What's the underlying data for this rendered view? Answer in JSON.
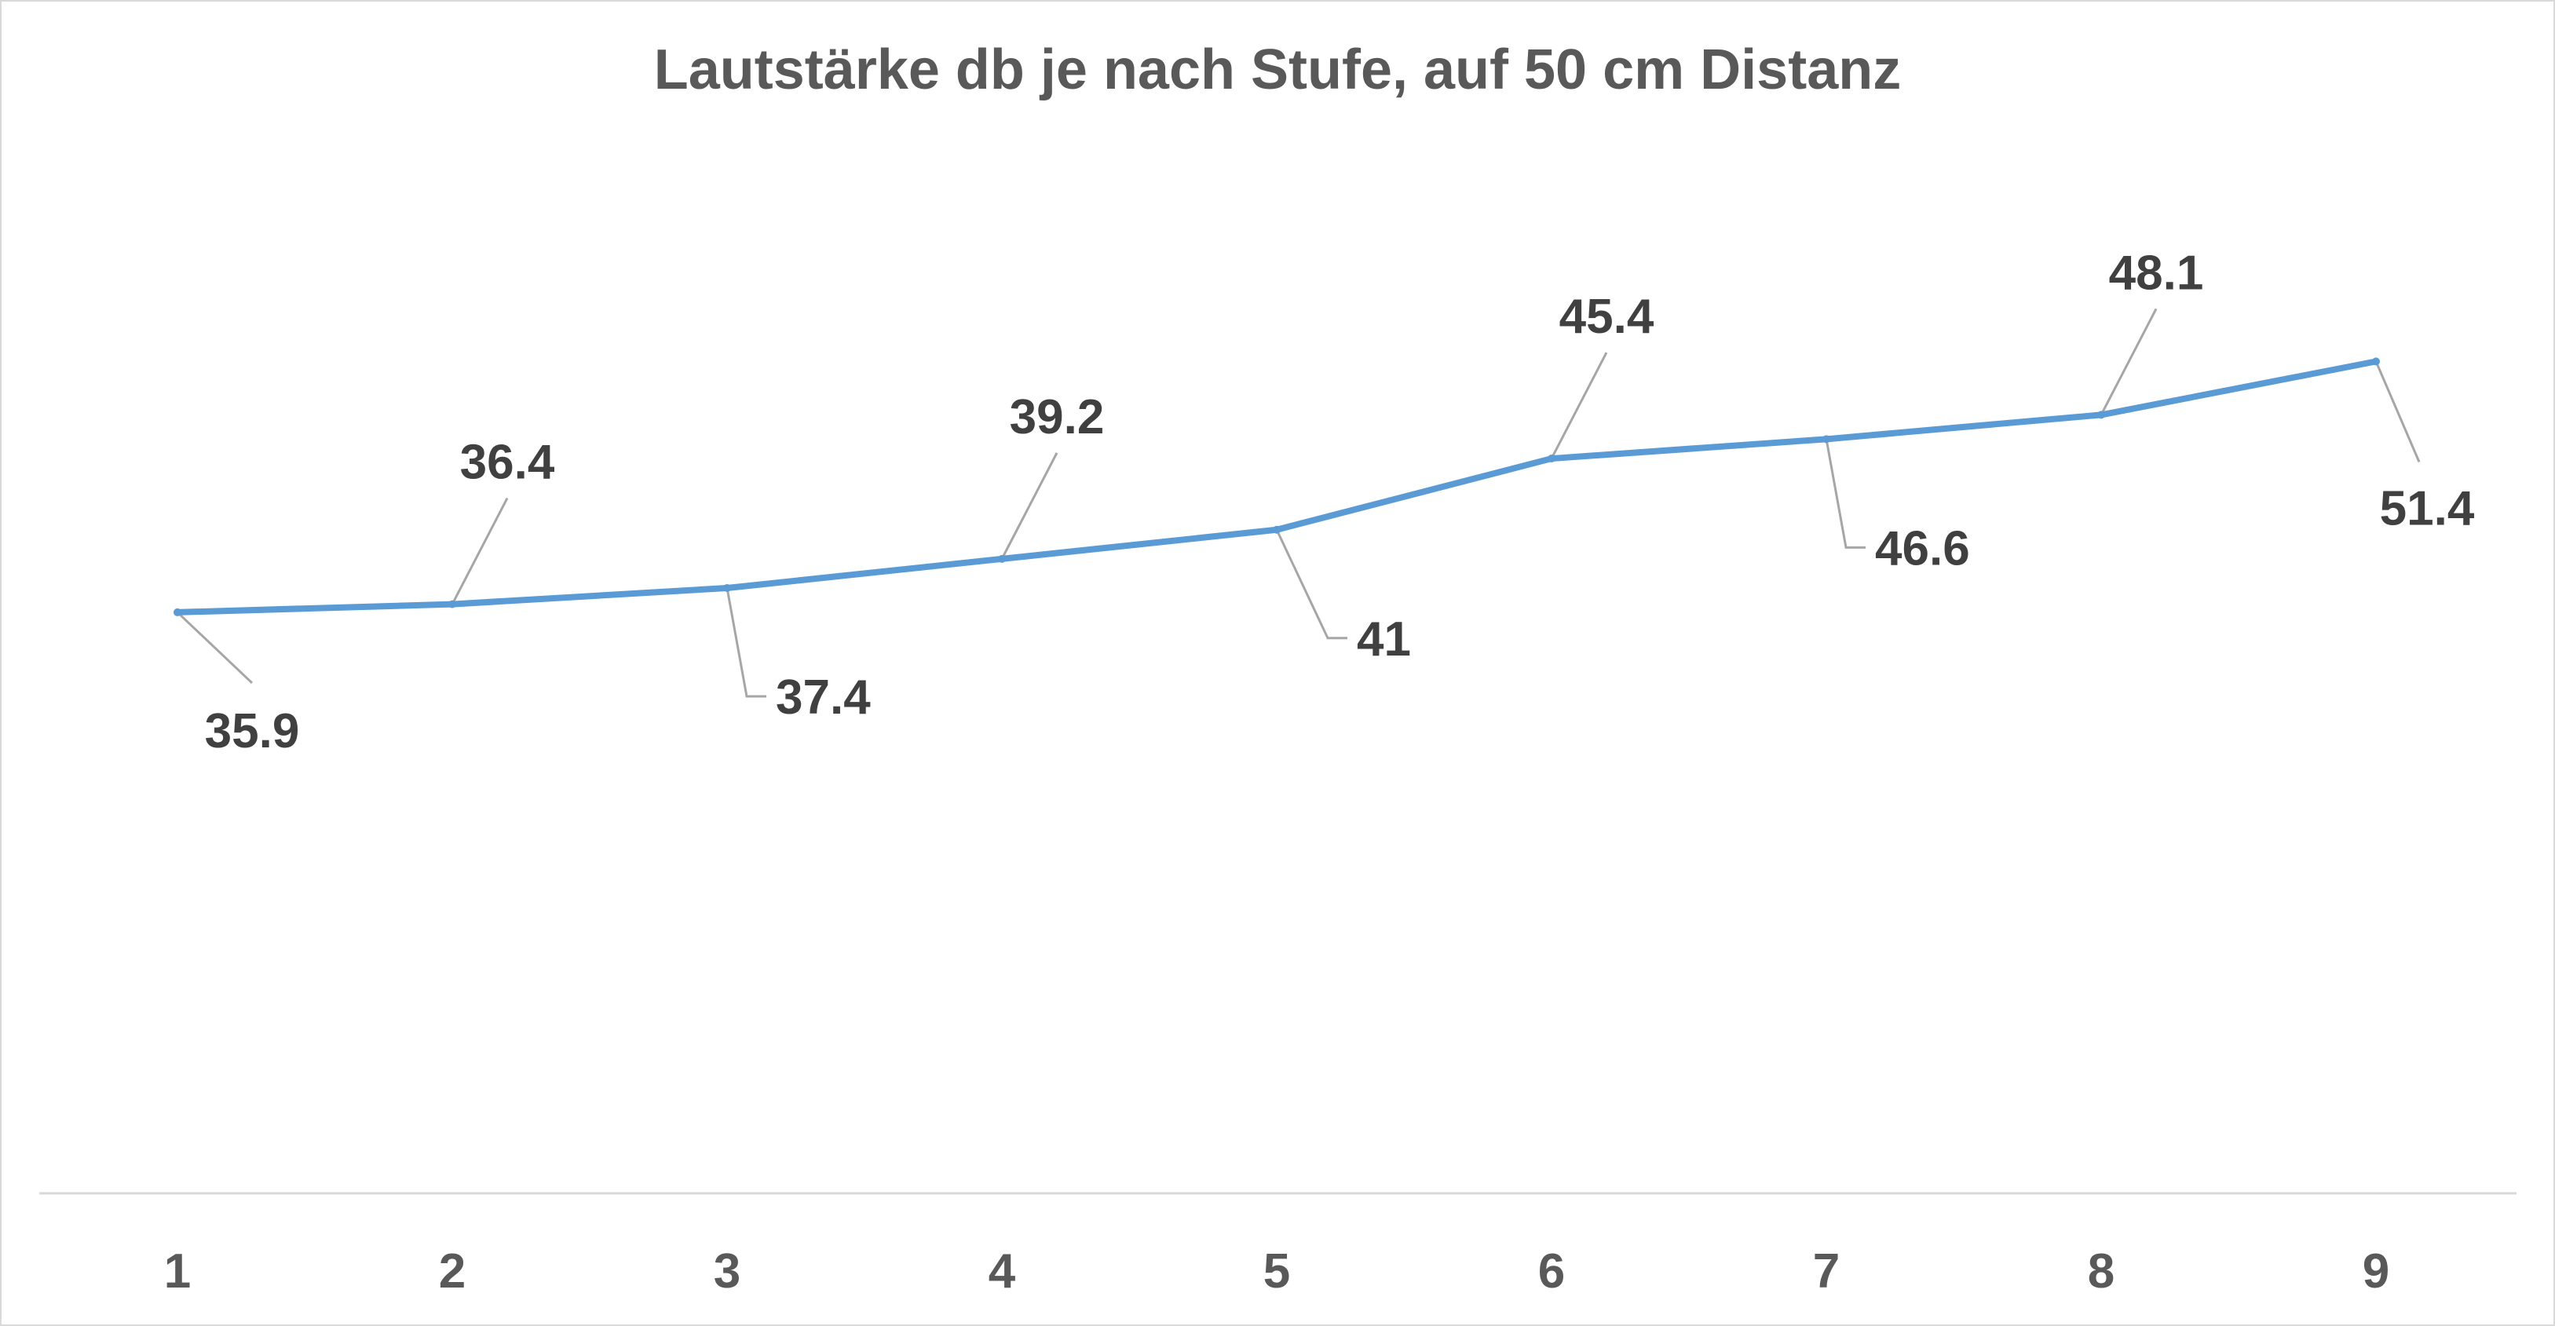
{
  "chart_data": {
    "type": "line",
    "title": "Lautstärke db je nach Stufe, auf 50 cm Distanz",
    "xlabel": "",
    "ylabel": "",
    "categories": [
      "1",
      "2",
      "3",
      "4",
      "5",
      "6",
      "7",
      "8",
      "9"
    ],
    "series": [
      {
        "values": [
          35.9,
          36.4,
          37.4,
          39.2,
          41,
          45.4,
          46.6,
          48.1,
          51.4
        ],
        "labels": [
          "35.9",
          "36.4",
          "37.4",
          "39.2",
          "41",
          "45.4",
          "46.6",
          "48.1",
          "51.4"
        ],
        "label_positions": [
          "below",
          "above",
          "below",
          "above",
          "below",
          "above",
          "below",
          "above",
          "below"
        ]
      }
    ],
    "ylim": [
      0,
      65
    ],
    "grid": false,
    "legend": "none",
    "y_axis_visible": false,
    "colors": {
      "line": "#5b9bd5",
      "axis": "#d9d9d9",
      "tick_text": "#595959",
      "data_label_text": "#404040",
      "leader": "#a6a6a6",
      "title": "#595959"
    }
  }
}
